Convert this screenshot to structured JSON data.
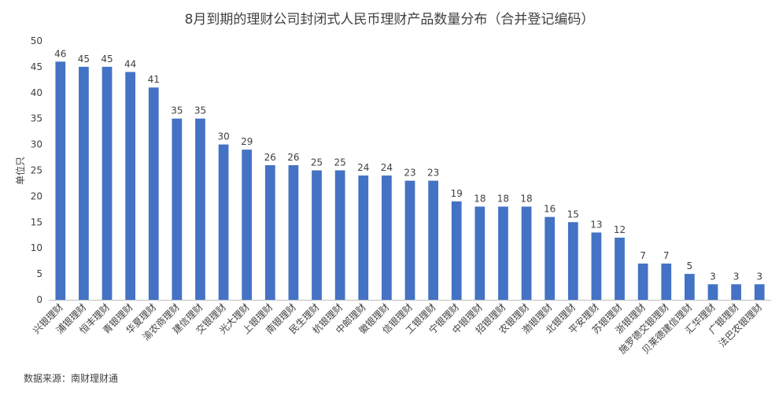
{
  "chart_data": {
    "type": "bar",
    "title": "8月到期的理财公司封闭式人民币理财产品数量分布（合并登记编码）",
    "ylabel": "单位只",
    "xlabel": "",
    "ylim": [
      0,
      50
    ],
    "yticks": [
      0,
      5,
      10,
      15,
      20,
      25,
      30,
      35,
      40,
      45,
      50
    ],
    "grid": false,
    "legend": "none",
    "bar_color": "#4472C4",
    "categories": [
      "兴银理财",
      "浦银理财",
      "恒丰理财",
      "青银理财",
      "华夏理财",
      "渝农商理财",
      "建信理财",
      "交银理财",
      "光大理财",
      "上银理财",
      "南银理财",
      "民生理财",
      "杭银理财",
      "中邮理财",
      "徽银理财",
      "信银理财",
      "工银理财",
      "宁银理财",
      "中银理财",
      "招银理财",
      "农银理财",
      "渤银理财",
      "北银理财",
      "平安理财",
      "苏银理财",
      "浙银理财",
      "施罗德交银理财",
      "贝莱德建信理财",
      "汇华理财",
      "广银理财",
      "法巴农银理财"
    ],
    "values": [
      46,
      45,
      45,
      44,
      41,
      35,
      35,
      30,
      29,
      26,
      26,
      25,
      25,
      24,
      24,
      23,
      23,
      19,
      18,
      18,
      18,
      16,
      15,
      13,
      12,
      7,
      7,
      5,
      3,
      3,
      3
    ],
    "source": "数据来源：南财理财通"
  }
}
